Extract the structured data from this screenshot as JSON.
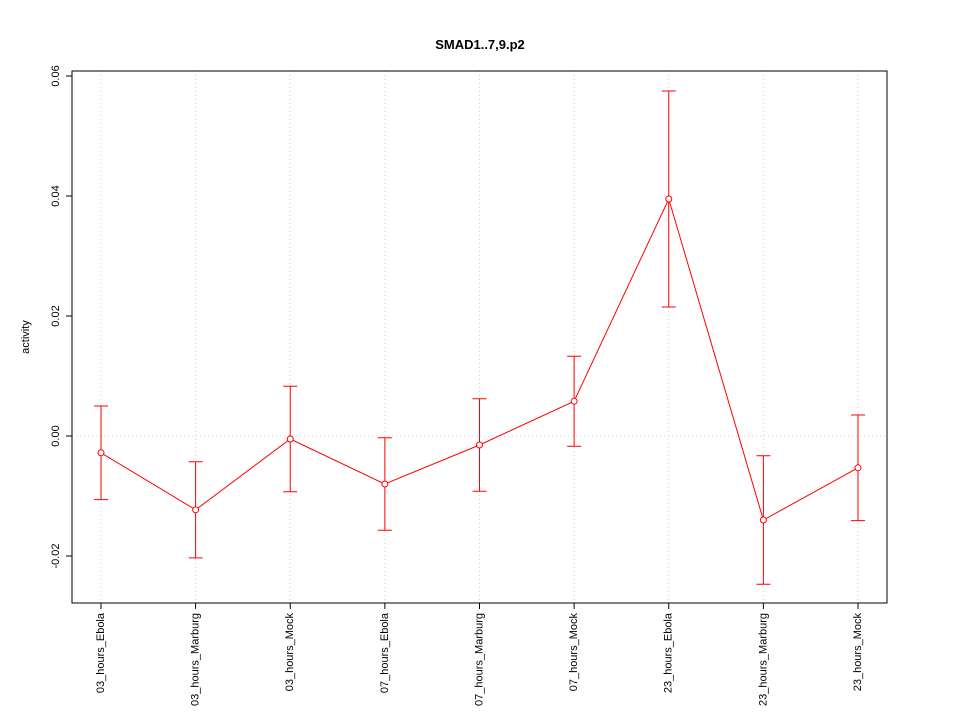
{
  "chart_data": {
    "type": "line",
    "title": "SMAD1..7,9.p2",
    "y_label": "activity",
    "categories": [
      "03_hours_Ebola",
      "03_hours_Marburg",
      "03_hours_Mock",
      "07_hours_Ebola",
      "07_hours_Marburg",
      "07_hours_Mock",
      "23_hours_Ebola",
      "23_hours_Marburg",
      "23_hours_Mock"
    ],
    "series": [
      {
        "name": "activity",
        "color": "#ff0000",
        "values": [
          -0.0028,
          -0.0123,
          -0.0005,
          -0.008,
          -0.0015,
          0.0058,
          0.0395,
          -0.014,
          -0.0053
        ],
        "errors": [
          0.0078,
          0.008,
          0.0088,
          0.0077,
          0.0077,
          0.0075,
          0.018,
          0.0107,
          0.0088
        ]
      }
    ],
    "ylim": [
      -0.02783,
      0.06083
    ],
    "yticks": [
      -0.02,
      {
        "value": 0,
        "label": "0.00"
      },
      0.02,
      0.04,
      0.06
    ],
    "grid": true,
    "reference_line": 0
  }
}
